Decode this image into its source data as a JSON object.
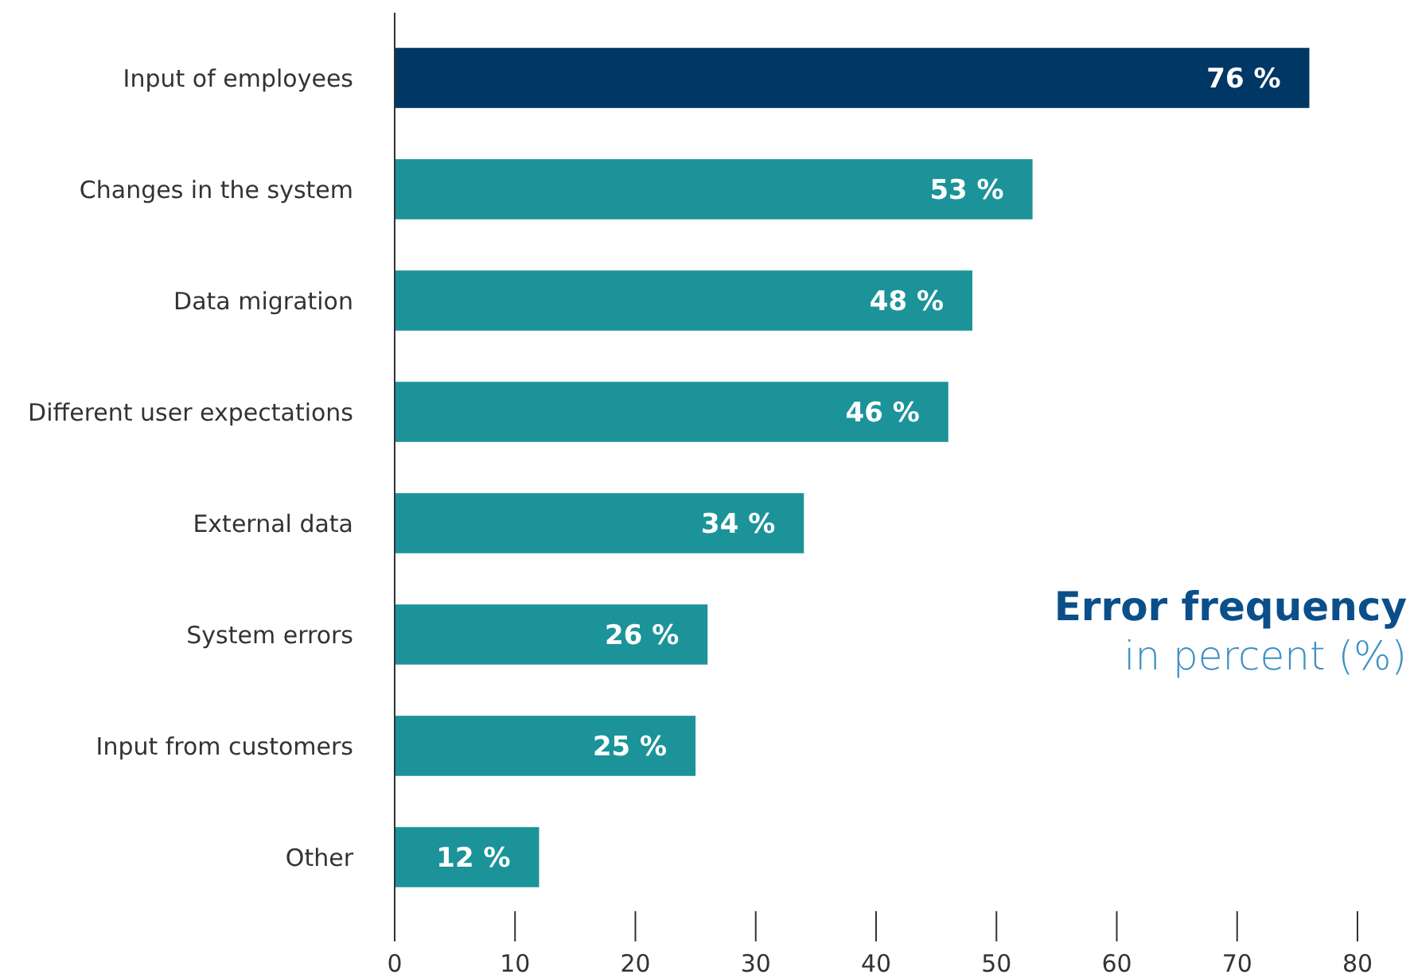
{
  "chart_data": {
    "type": "bar",
    "orientation": "horizontal",
    "title": "Error frequency",
    "subtitle": "in percent (%)",
    "categories": [
      "Input of employees",
      "Changes in the system",
      "Data migration",
      "Different user expectations",
      "External data",
      "System errors",
      "Input from customers",
      "Other"
    ],
    "values": [
      76,
      53,
      48,
      46,
      34,
      26,
      25,
      12
    ],
    "colors": [
      "#003764",
      "#1b9399",
      "#1b9399",
      "#1b9399",
      "#1b9399",
      "#1b9399",
      "#1b9399",
      "#1b9399"
    ],
    "value_labels": [
      "76 %",
      "53 %",
      "48 %",
      "46 %",
      "34 %",
      "26 %",
      "25 %",
      "12 %"
    ],
    "xlim": [
      0,
      80
    ],
    "xticks": [
      0,
      10,
      20,
      30,
      40,
      50,
      60,
      70,
      80
    ]
  }
}
